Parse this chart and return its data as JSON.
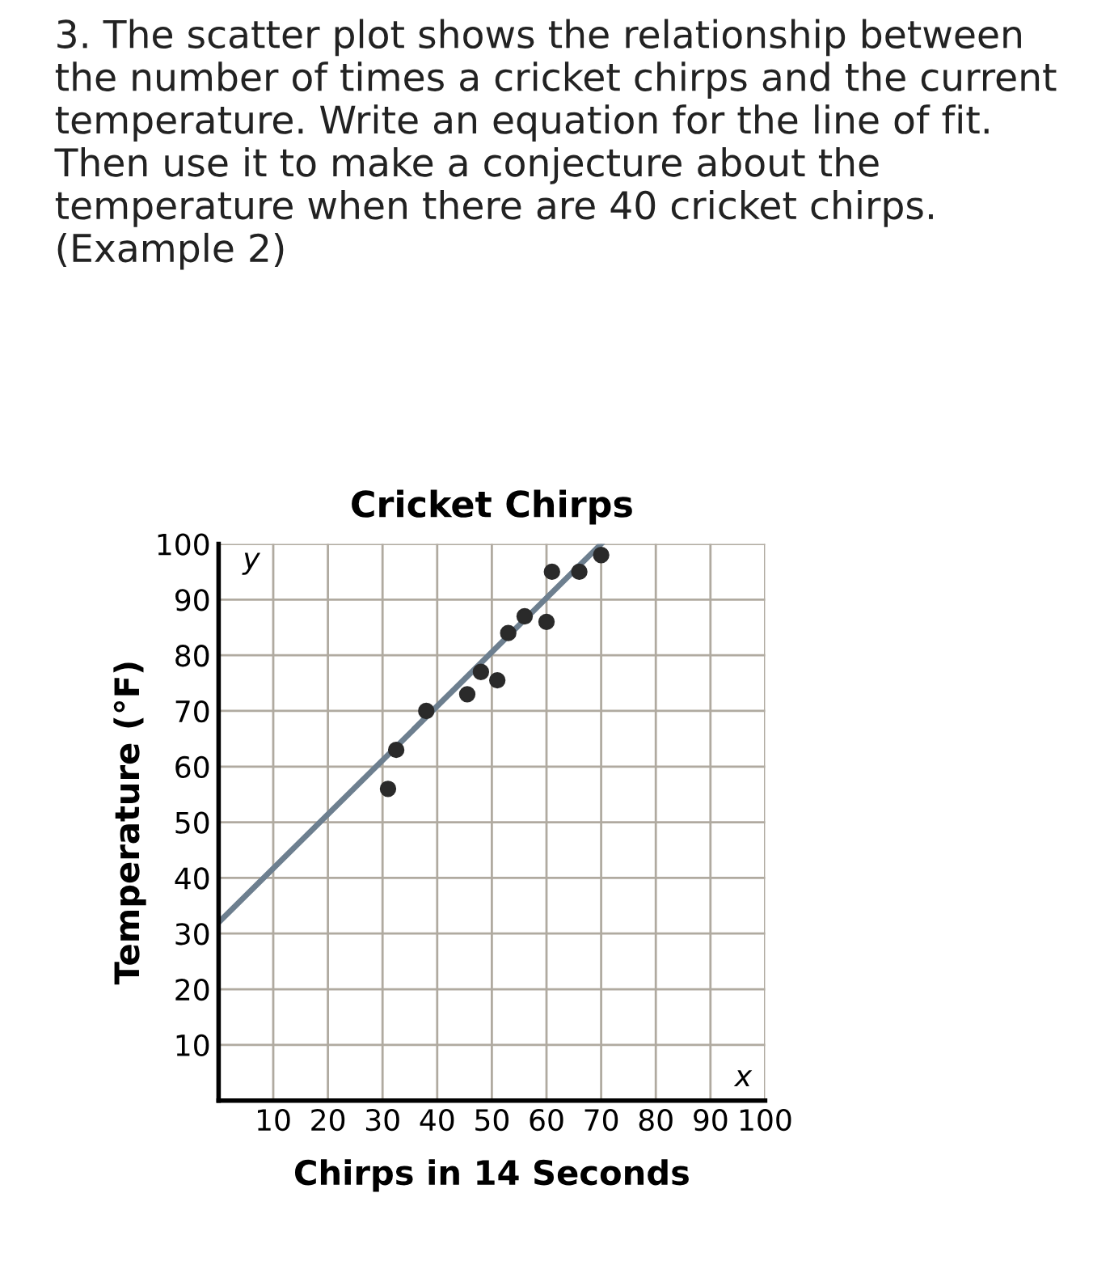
{
  "chart_data": {
    "type": "scatter",
    "title": "Cricket Chirps",
    "xlabel": "Chirps in 14 Seconds",
    "ylabel": "Temperature (°F)",
    "annotations": [
      "3. The scatter plot shows the relationship between the number of times a cricket chirps and the current temperature. Write an equation for the line of fit. Then use it to make a conjecture about the temperature when there are 40 cricket chirps. (Example 2)",
      "y",
      "x"
    ],
    "series": [
      {
        "color": "#2a2a2a",
        "x": [
          31,
          32.5,
          38,
          45.5,
          48,
          51,
          53,
          56,
          60,
          61,
          66,
          70
        ],
        "values": [
          56,
          63,
          70,
          73,
          77,
          75.5,
          84,
          87,
          86,
          95,
          95,
          98
        ]
      },
      {
        "type": "line",
        "marker": "none",
        "color": "#6d7f8f",
        "x": [
          0,
          70
        ],
        "values": [
          32,
          100
        ]
      }
    ],
    "xlim": [
      0,
      100
    ],
    "ylim": [
      0,
      100
    ],
    "xticks": [
      10,
      20,
      30,
      40,
      50,
      60,
      70,
      80,
      90,
      100
    ],
    "yticks": [
      10,
      20,
      30,
      40,
      50,
      60,
      70,
      80,
      90,
      100
    ],
    "grid": true,
    "marker": "circle"
  }
}
